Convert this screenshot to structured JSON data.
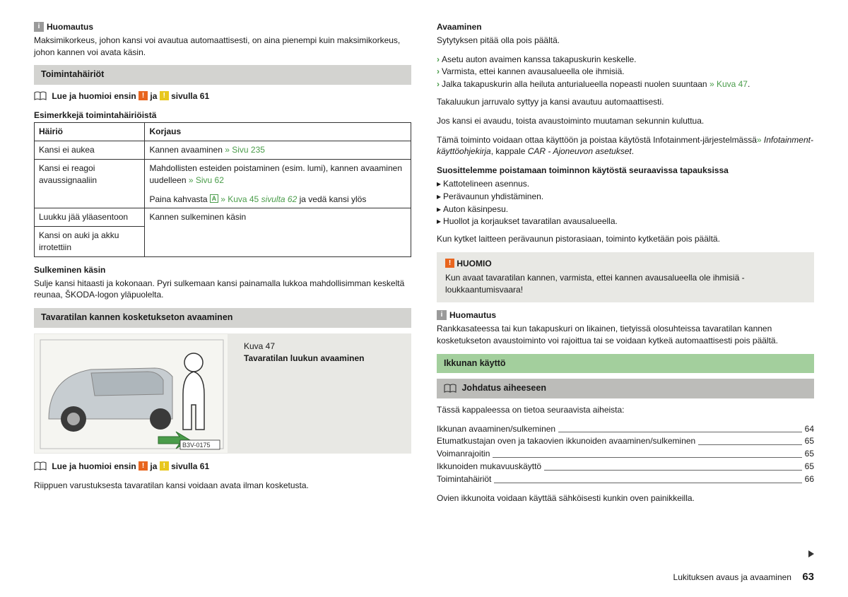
{
  "left": {
    "note1": {
      "label": "Huomautus",
      "text": "Maksimikorkeus, johon kansi voi avautua automaattisesti, on aina pienempi kuin maksimikorkeus, johon kannen voi avata käsin."
    },
    "sec1": {
      "heading": "Toimintahäiriöt"
    },
    "readfirst": {
      "pre": "Lue ja huomioi ensin",
      "mid": "ja",
      "post": "sivulla 61"
    },
    "tableTitle": "Esimerkkejä toimintahäiriöistä",
    "table": {
      "h1": "Häiriö",
      "h2": "Korjaus",
      "r1c1": "Kansi ei aukea",
      "r1c2a": "Kannen avaaminen ",
      "r1c2link": "» Sivu 235",
      "r2c1": "Kansi ei reagoi avaussignaaliin",
      "r2c2a": "Mahdollisten esteiden poistaminen (esim. lumi), kannen avaaminen uudelleen ",
      "r2c2alink": "» Sivu 62",
      "r2c2b1": "Paina kahvasta ",
      "r2c2key": "A",
      "r2c2b2": " » Kuva 45 ",
      "r2c2b3": "sivulta 62",
      "r2c2b4": " ja vedä kansi ylös",
      "r3c1": "Luukku jää yläasentoon",
      "r34c2": "Kannen sulkeminen käsin",
      "r4c1": "Kansi on auki ja akku irrotettiin"
    },
    "close": {
      "label": "Sulkeminen käsin",
      "text": "Sulje kansi hitaasti ja kokonaan. Pyri sulkemaan kansi painamalla lukkoa mahdollisimman keskeltä reunaa, ŠKODA-logon yläpuolelta."
    },
    "sec2": {
      "heading": "Tavaratilan kannen kosketukseton avaaminen"
    },
    "fig": {
      "num": "Kuva 47",
      "caption": "Tavaratilan luukun avaaminen",
      "ref": "B3V-0175"
    },
    "depends": "Riippuen varustuksesta tavaratilan kansi voidaan avata ilman kosketusta."
  },
  "right": {
    "open": {
      "label": "Avaaminen",
      "line0": "Sytytyksen pitää olla pois päältä.",
      "s1": "Asetu auton avaimen kanssa takapuskurin keskelle.",
      "s2": "Varmista, ettei kannen avausalueella ole ihmisiä.",
      "s3a": "Jalka takapuskurin alla heiluta anturialueella nopeasti nuolen suuntaan ",
      "s3link": "» Kuva 47",
      "s3b": ".",
      "p2": "Takaluukun jarruvalo syttyy ja kansi avautuu automaattisesti.",
      "p3": "Jos kansi ei avaudu, toista avaustoiminto muutaman sekunnin kuluttua.",
      "p4a": "Tämä toiminto voidaan ottaa käyttöön ja poistaa käytöstä Infotainment-järjestelmässä",
      "p4link": "» ",
      "p4i": "Infotainment-käyttöohjekirja",
      "p4b": ", kappale ",
      "p4i2": "CAR - Ajoneuvon asetukset",
      "p4c": "."
    },
    "rec": {
      "label": "Suosittelemme poistamaan toiminnon käytöstä seuraavissa tapauksissa",
      "i1": "Kattotelineen asennus.",
      "i2": "Perävaunun yhdistäminen.",
      "i3": "Auton käsinpesu.",
      "i4": "Huollot ja korjaukset tavaratilan avausalueella."
    },
    "trailer": "Kun kytket laitteen perävaunun pistorasiaan, toiminto kytketään pois päältä.",
    "huomio": {
      "label": "HUOMIO",
      "text": "Kun avaat tavaratilan kannen, varmista, ettei kannen avausalueella ole ihmisiä - loukkaantumisvaara!"
    },
    "note2": {
      "label": "Huomautus",
      "text": "Rankkasateessa tai kun takapuskuri on likainen, tietyissä olosuhteissa tavaratilan kannen kosketukseton avaustoiminto voi rajoittua tai se voidaan kytkeä automaattisesti pois päältä."
    },
    "secWin": {
      "heading": "Ikkunan käyttö"
    },
    "secIntro": {
      "heading": "Johdatus aiheeseen"
    },
    "tocLead": "Tässä kappaleessa on tietoa seuraavista aiheista:",
    "toc": [
      {
        "t": "Ikkunan avaaminen/sulkeminen",
        "p": "64"
      },
      {
        "t": "Etumatkustajan oven ja takaovien ikkunoiden avaaminen/sulkeminen",
        "p": "65"
      },
      {
        "t": "Voimanrajoitin",
        "p": "65"
      },
      {
        "t": "Ikkunoiden mukavuuskäyttö",
        "p": "65"
      },
      {
        "t": "Toimintahäiriöt",
        "p": "66"
      }
    ],
    "afterToc": "Ovien ikkunoita voidaan käyttää sähköisesti kunkin oven painikkeilla."
  },
  "footer": {
    "section": "Lukituksen avaus ja avaaminen",
    "page": "63"
  }
}
